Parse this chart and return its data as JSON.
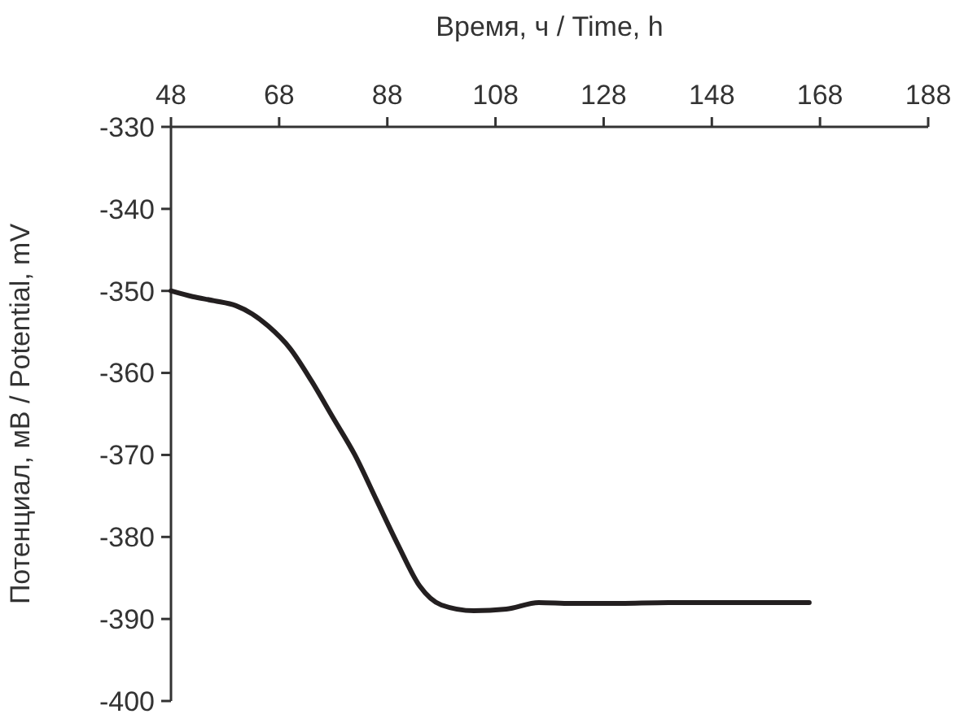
{
  "chart_data": {
    "type": "line",
    "xlabel": "Время, ч / Time, h",
    "ylabel": "Потенциал, мВ / Potential, mV",
    "x": [
      48,
      52,
      56,
      60,
      63,
      66,
      70,
      74,
      78,
      82,
      86,
      90,
      94,
      98,
      104,
      110,
      116,
      122,
      130,
      140,
      155,
      166
    ],
    "series": [
      {
        "color": "#231f20",
        "values": [
          -350,
          -350.7,
          -351.2,
          -351.8,
          -352.8,
          -354.3,
          -357,
          -361,
          -365.5,
          -370,
          -375.5,
          -381,
          -386,
          -388.3,
          -389,
          -388.8,
          -388,
          -388.1,
          -388.1,
          -388,
          -388,
          -388
        ]
      }
    ],
    "xlim": [
      48,
      188
    ],
    "xticks": [
      48,
      68,
      88,
      108,
      128,
      148,
      168,
      188
    ],
    "ylim": [
      -400,
      -330
    ],
    "yticks": [
      -400,
      -390,
      -380,
      -370,
      -360,
      -350,
      -340,
      -330
    ],
    "marker": "none",
    "line_style": "solid"
  }
}
